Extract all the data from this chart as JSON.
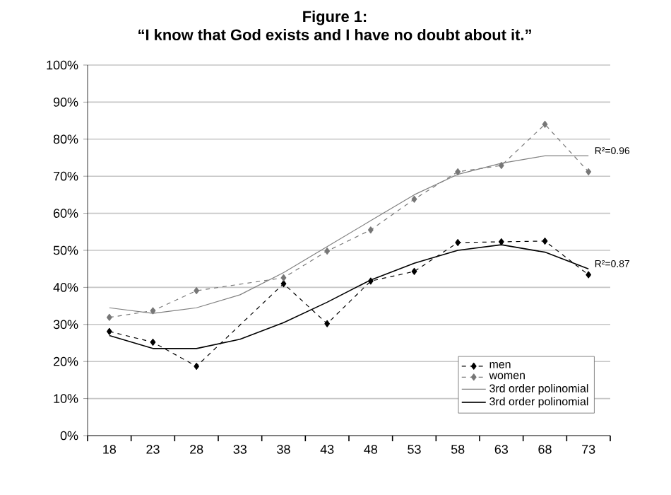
{
  "chart_data": {
    "type": "line",
    "title": "Figure 1:",
    "subtitle": "“I know that God exists and I have no doubt about it.”",
    "categories": [
      "18",
      "23",
      "28",
      "33",
      "38",
      "43",
      "48",
      "53",
      "58",
      "63",
      "68",
      "73"
    ],
    "series": [
      {
        "name": "men",
        "color": "#000000",
        "marker": "diamond",
        "line_style": "dashed",
        "values": [
          28.1,
          25.2,
          18.7,
          null,
          41,
          30.2,
          41.7,
          44.3,
          52.1,
          52.3,
          52.5,
          43.4
        ]
      },
      {
        "name": "women",
        "color": "#777777",
        "marker": "diamond",
        "line_style": "dashed",
        "values": [
          31.9,
          33.7,
          39.1,
          null,
          42.6,
          49.8,
          55.5,
          63.8,
          71.2,
          72.9,
          84,
          71.2
        ]
      },
      {
        "name": "3rd order polinomial",
        "color": "#808080",
        "marker": "none",
        "line_style": "solid",
        "values": [
          34.5,
          33,
          34.5,
          38,
          44,
          51,
          58,
          65,
          70.5,
          73.5,
          75.5,
          75.5
        ]
      },
      {
        "name": "3rd order polinomial",
        "color": "#000000",
        "marker": "none",
        "line_style": "solid",
        "values": [
          27,
          23.5,
          23.5,
          26,
          30.5,
          36,
          42,
          46.5,
          50,
          51.5,
          49.5,
          45
        ]
      }
    ],
    "ylim": [
      0,
      100
    ],
    "yticks": [
      {
        "value": 0,
        "label": "0%"
      },
      {
        "value": 10,
        "label": "10%"
      },
      {
        "value": 20,
        "label": "20%"
      },
      {
        "value": 30,
        "label": "30%"
      },
      {
        "value": 40,
        "label": "40%"
      },
      {
        "value": 50,
        "label": "50%"
      },
      {
        "value": 60,
        "label": "60%"
      },
      {
        "value": 70,
        "label": "70%"
      },
      {
        "value": 80,
        "label": "80%"
      },
      {
        "value": 90,
        "label": "90%"
      },
      {
        "value": 100,
        "label": "100%"
      }
    ],
    "grid": "y",
    "legend": "bottom right",
    "annotations": [
      {
        "text": "R²=0.96",
        "x": "73",
        "y": 75.5
      },
      {
        "text": "R²=0.87",
        "x": "73",
        "y": 45
      }
    ]
  }
}
